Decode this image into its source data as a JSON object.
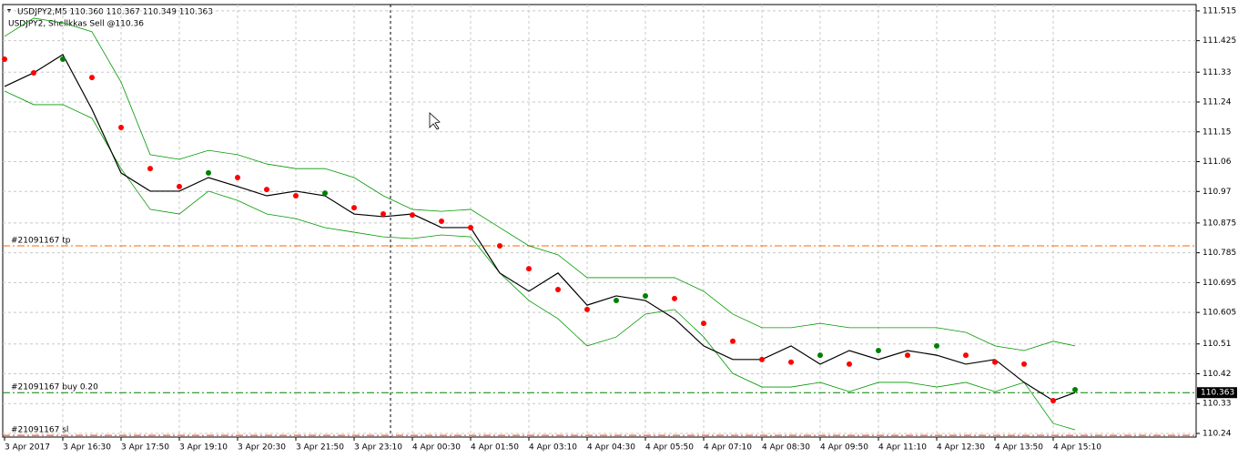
{
  "chart_data": {
    "type": "line",
    "title": "USDJPY2,M5  110.360 110.367 110.349 110.363",
    "subtitle": "USDJPY2, Shellkkas Sell @110.36",
    "x": [
      0,
      8,
      16,
      24,
      32,
      40,
      48,
      56,
      64,
      72,
      80,
      88,
      96,
      104,
      112,
      120,
      128,
      136,
      144,
      152,
      160,
      168,
      176,
      184,
      192,
      200,
      208,
      216,
      224,
      232,
      240,
      248,
      256,
      264,
      272,
      280,
      288,
      294
    ],
    "xlim": [
      -0.5,
      327.25
    ],
    "xticks": [
      {
        "value": 0,
        "label": "3 Apr 2017"
      },
      {
        "value": 16,
        "label": "3 Apr 16:30"
      },
      {
        "value": 32,
        "label": "3 Apr 17:50"
      },
      {
        "value": 48,
        "label": "3 Apr 19:10"
      },
      {
        "value": 64,
        "label": "3 Apr 20:30"
      },
      {
        "value": 80,
        "label": "3 Apr 21:50"
      },
      {
        "value": 96,
        "label": "3 Apr 23:10"
      },
      {
        "value": 112,
        "label": "4 Apr 00:30"
      },
      {
        "value": 128,
        "label": "4 Apr 01:50"
      },
      {
        "value": 144,
        "label": "4 Apr 03:10"
      },
      {
        "value": 160,
        "label": "4 Apr 04:30"
      },
      {
        "value": 176,
        "label": "4 Apr 05:50"
      },
      {
        "value": 192,
        "label": "4 Apr 07:10"
      },
      {
        "value": 208,
        "label": "4 Apr 08:30"
      },
      {
        "value": 224,
        "label": "4 Apr 09:50"
      },
      {
        "value": 240,
        "label": "4 Apr 11:10"
      },
      {
        "value": 256,
        "label": "4 Apr 12:30"
      },
      {
        "value": 272,
        "label": "4 Apr 13:50"
      },
      {
        "value": 288,
        "label": "4 Apr 15:10"
      }
    ],
    "ylim": [
      110.229,
      111.534
    ],
    "yticks": [
      111.515,
      111.425,
      111.33,
      111.24,
      111.15,
      111.06,
      110.97,
      110.875,
      110.785,
      110.695,
      110.605,
      110.51,
      110.42,
      110.33,
      110.24
    ],
    "grid": true,
    "up_color": "#008000",
    "down_color": "#ff0000",
    "series": [
      {
        "name": "Close",
        "color": "#000000",
        "values": [
          111.287,
          111.328,
          111.383,
          111.218,
          111.026,
          110.971,
          110.971,
          111.012,
          110.985,
          110.957,
          110.971,
          110.957,
          110.902,
          110.894,
          110.902,
          110.861,
          110.861,
          110.724,
          110.669,
          110.724,
          110.627,
          110.655,
          110.641,
          110.586,
          110.504,
          110.463,
          110.463,
          110.504,
          110.449,
          110.49,
          110.463,
          110.49,
          110.476,
          110.449,
          110.463,
          110.394,
          110.339,
          110.363
        ]
      },
      {
        "name": "Shellkkas",
        "color": "#ff0000",
        "values": [
          111.369,
          111.328,
          111.369,
          111.314,
          111.163,
          111.039,
          110.985,
          111.026,
          111.012,
          110.976,
          110.957,
          110.965,
          110.921,
          110.902,
          110.899,
          110.88,
          110.861,
          110.806,
          110.737,
          110.674,
          110.614,
          110.641,
          110.655,
          110.647,
          110.572,
          110.518,
          110.463,
          110.455,
          110.476,
          110.449,
          110.49,
          110.476,
          110.504,
          110.476,
          110.455,
          110.449,
          110.339,
          110.372
        ]
      },
      {
        "name": "Upper",
        "color": "#009900",
        "values": [
          111.438,
          111.493,
          111.479,
          111.452,
          111.3,
          111.081,
          111.067,
          111.094,
          111.081,
          111.053,
          111.039,
          111.039,
          111.012,
          110.957,
          110.916,
          110.91,
          110.916,
          110.861,
          110.806,
          110.779,
          110.71,
          110.71,
          110.71,
          110.71,
          110.669,
          110.6,
          110.559,
          110.559,
          110.572,
          110.559,
          110.559,
          110.559,
          110.559,
          110.545,
          110.504,
          110.49,
          110.518,
          110.504
        ]
      },
      {
        "name": "Lower",
        "color": "#009900",
        "values": [
          111.273,
          111.232,
          111.232,
          111.191,
          111.039,
          110.916,
          110.902,
          110.971,
          110.943,
          110.902,
          110.888,
          110.861,
          110.847,
          110.833,
          110.828,
          110.839,
          110.833,
          110.724,
          110.641,
          110.586,
          110.504,
          110.531,
          110.6,
          110.614,
          110.531,
          110.421,
          110.38,
          110.38,
          110.394,
          110.366,
          110.394,
          110.394,
          110.38,
          110.394,
          110.366,
          110.394,
          110.27,
          110.251
        ]
      }
    ],
    "levels": [
      {
        "label": "#21091167 tp",
        "value": 110.806,
        "color": "#ff6600"
      },
      {
        "label": "#21091167 buy 0.20",
        "value": 110.363,
        "color": "#008000"
      },
      {
        "label": "#21091167 sl",
        "value": 110.234,
        "color": "#ff3300"
      }
    ],
    "price": 110.363
  }
}
